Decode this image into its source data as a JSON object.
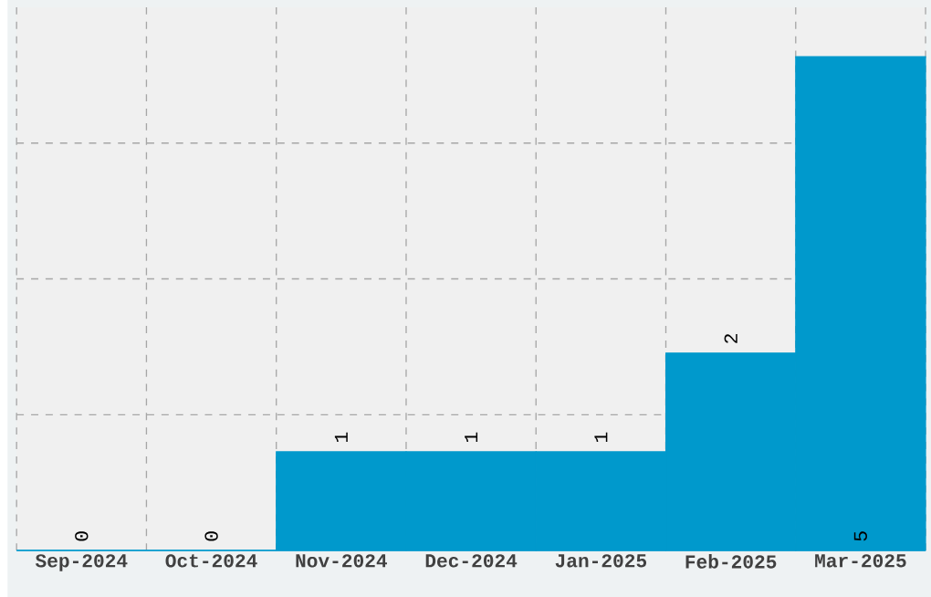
{
  "chart_data": {
    "type": "bar",
    "categories": [
      "Sep-2024",
      "Oct-2024",
      "Nov-2024",
      "Dec-2024",
      "Jan-2025",
      "Feb-2025",
      "Mar-2025"
    ],
    "values": [
      0,
      0,
      1,
      1,
      1,
      2,
      5
    ],
    "color": "#0099cc",
    "ylim": [
      0,
      5.5
    ],
    "yticks": [
      {
        "value": 1.375,
        "label": null
      },
      {
        "value": 2.75,
        "label": null
      },
      {
        "value": 4.125,
        "label": null
      }
    ],
    "grid": true,
    "data_labels": true
  }
}
